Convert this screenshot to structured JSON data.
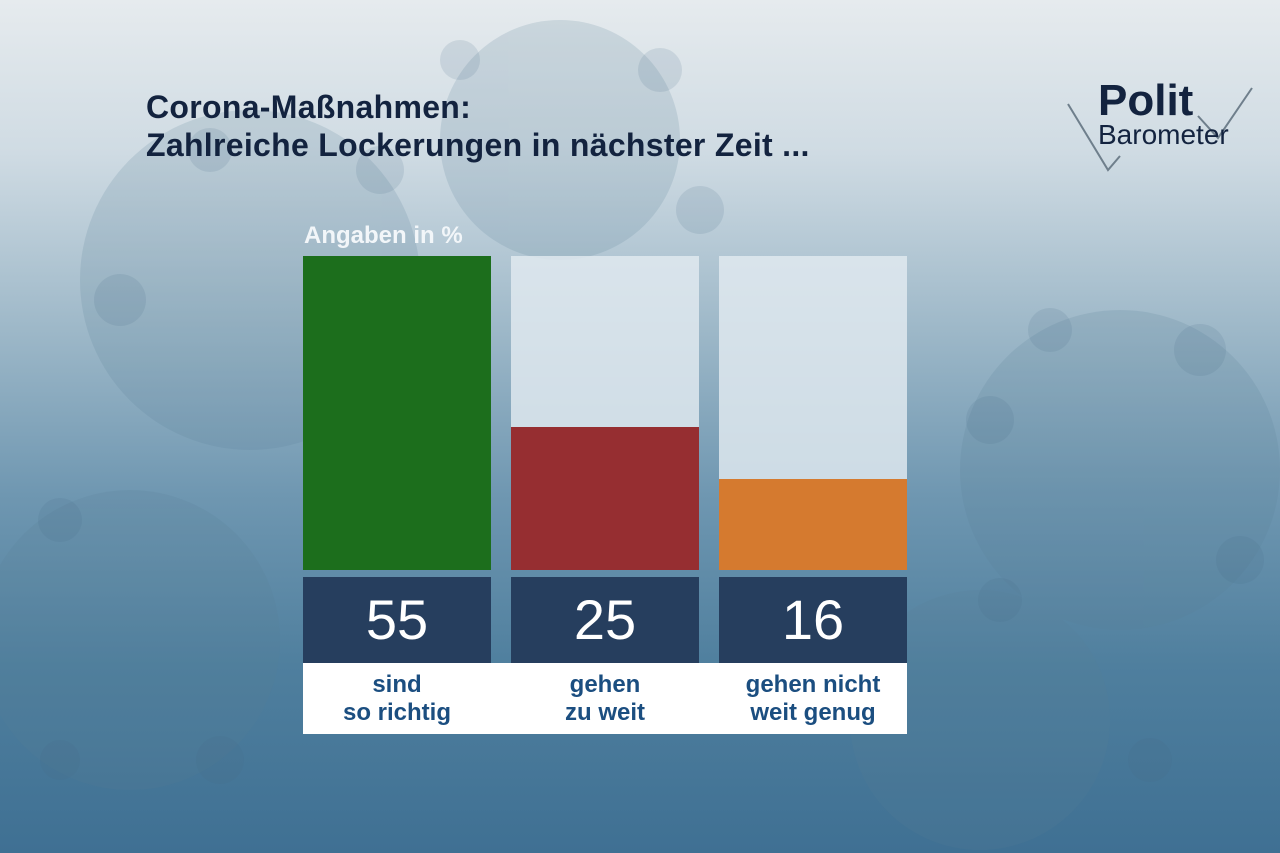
{
  "title_lines": [
    "Corona-Maßnahmen:",
    "Zahlreiche Lockerungen in nächster Zeit ..."
  ],
  "logo": {
    "line1": "Polit",
    "line2": "Barometer"
  },
  "chart_data": {
    "type": "bar",
    "title": "Corona-Maßnahmen: Zahlreiche Lockerungen in nächster Zeit ...",
    "unit_label": "Angaben in %",
    "categories": [
      [
        "sind",
        "so richtig"
      ],
      [
        "gehen",
        "zu weit"
      ],
      [
        "gehen nicht",
        "weit genug"
      ]
    ],
    "values": [
      55,
      25,
      16
    ],
    "value_labels": [
      "55",
      "25",
      "16"
    ],
    "colors": [
      "#1c6e1c",
      "#962e31",
      "#d57a2f"
    ],
    "ylim": [
      0,
      55
    ],
    "grid": false,
    "legend": "none"
  }
}
